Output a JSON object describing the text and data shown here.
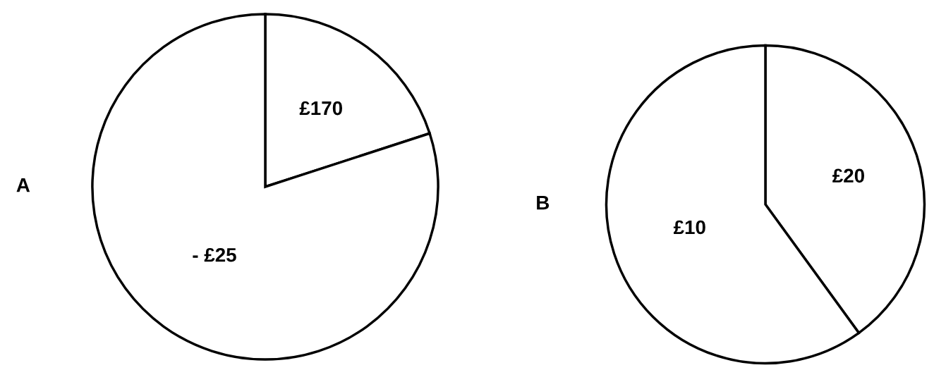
{
  "chart_data": [
    {
      "type": "pie",
      "title": "A",
      "categories": [
        "£170",
        "- £25"
      ],
      "values": [
        20,
        80
      ],
      "colors": [
        "#ffffff",
        "#ffffff"
      ]
    },
    {
      "type": "pie",
      "title": "B",
      "categories": [
        "£20",
        "£10"
      ],
      "values": [
        40,
        60
      ],
      "colors": [
        "#ffffff",
        "#ffffff"
      ]
    }
  ]
}
